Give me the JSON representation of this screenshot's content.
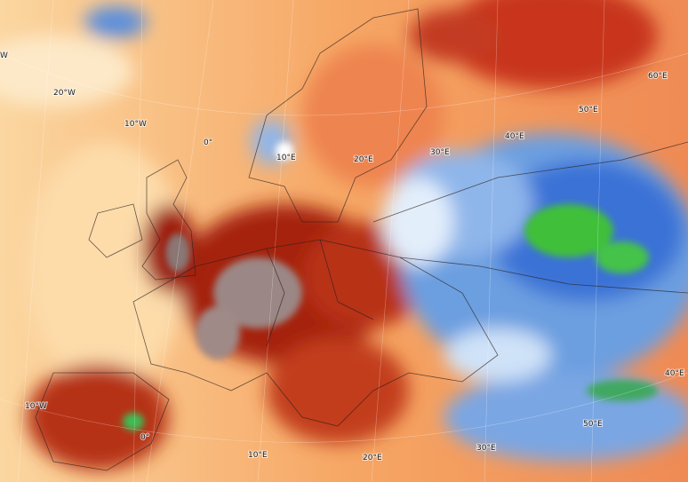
{
  "graticule_labels": [
    "20°W",
    "10°W",
    "0°",
    "10°E",
    "20°E",
    "30°E",
    "40°E",
    "50°E",
    "60°E",
    "W",
    "10°W",
    "0°",
    "10°E",
    "20°E",
    "30°E",
    "40°E",
    "50°E"
  ]
}
